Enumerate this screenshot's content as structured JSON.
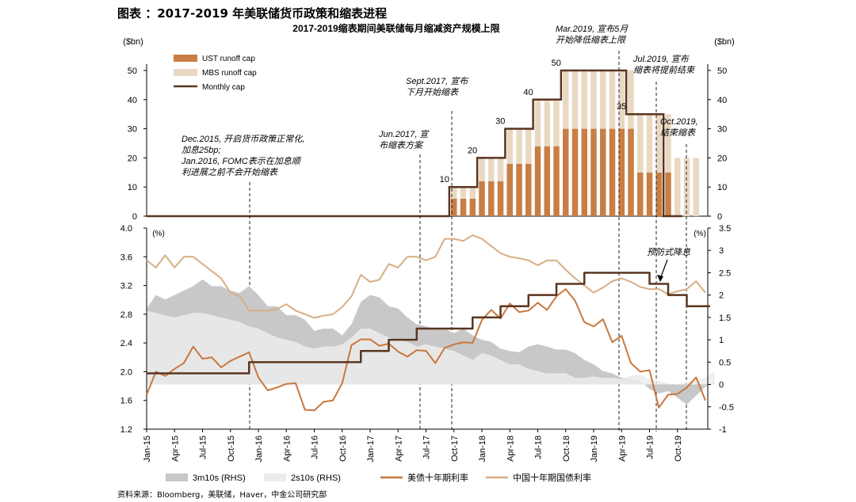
{
  "figure_title": "图表 ：2017-2019 年美联储货币政策和缩表进程",
  "source_note": "资料来源：Bloomberg，美联储，Haver，中金公司研究部",
  "colors": {
    "ust": "#c87e44",
    "mbs": "#e9d9c2",
    "monthly_cap": "#5a3520",
    "us10y": "#c8773e",
    "cn10y": "#d7ae85",
    "s3m10s": "#c8c8c8",
    "s2s10s": "#ececec",
    "axis": "#000000"
  },
  "chart_data": [
    {
      "type": "bar",
      "title": "2017-2019缩表期间美联储每月缩减资产规模上限",
      "ylabel_left": "($bn)",
      "ylabel_right": "($bn)",
      "ylim": [
        0,
        50
      ],
      "yticks": [
        0,
        10,
        20,
        30,
        40,
        50
      ],
      "legend": [
        "UST runoff cap",
        "MBS runoff cap",
        "Monthly cap"
      ],
      "legend_position": "top-left",
      "series": [
        {
          "name": "UST runoff cap",
          "type": "stacked-bar",
          "start_month": "2017-10",
          "values": [
            6,
            6,
            6,
            12,
            12,
            12,
            18,
            18,
            18,
            24,
            24,
            24,
            30,
            30,
            30,
            30,
            30,
            30,
            30,
            30,
            15,
            15,
            15,
            15,
            0,
            0,
            0
          ]
        },
        {
          "name": "MBS runoff cap",
          "type": "stacked-bar",
          "start_month": "2017-10",
          "values": [
            4,
            4,
            4,
            8,
            8,
            8,
            12,
            12,
            12,
            16,
            16,
            16,
            20,
            20,
            20,
            20,
            20,
            20,
            20,
            20,
            20,
            20,
            20,
            20,
            20,
            20,
            20
          ]
        },
        {
          "name": "Monthly cap",
          "type": "step-line",
          "points": [
            [
              "2015-01",
              0
            ],
            [
              "2017-09",
              0
            ],
            [
              "2017-10",
              10
            ],
            [
              "2018-01",
              20
            ],
            [
              "2018-04",
              30
            ],
            [
              "2018-07",
              40
            ],
            [
              "2018-10",
              50
            ],
            [
              "2019-05",
              35
            ],
            [
              "2019-09",
              0
            ],
            [
              "2019-10",
              0
            ]
          ]
        }
      ],
      "value_labels": [
        {
          "text": "10",
          "x": "2017-10"
        },
        {
          "text": "20",
          "x": "2018-01"
        },
        {
          "text": "30",
          "x": "2018-04"
        },
        {
          "text": "40",
          "x": "2018-07"
        },
        {
          "text": "50",
          "x": "2018-10"
        },
        {
          "text": "35",
          "x": "2019-05"
        }
      ],
      "annotations": [
        {
          "text": [
            "Dec.2015, 开启货币政策正常化,",
            "加息25bp;",
            "Jan.2016, FOMC表示在加息顺",
            "利进展之前不会开始缩表"
          ],
          "x": "2015-12"
        },
        {
          "text": [
            "Jun.2017, 宣",
            "布缩表方案"
          ],
          "x": "2017-06"
        },
        {
          "text": [
            "Sept.2017, 宣布",
            "下月开始缩表"
          ],
          "x": "2017-09"
        },
        {
          "text": [
            "Mar.2019, 宣布5月",
            "开始降低缩表上限"
          ],
          "x": "2019-03"
        },
        {
          "text": [
            "Jul.2019, 宣布",
            "缩表将提前结束"
          ],
          "x": "2019-07"
        },
        {
          "text": [
            "Oct.2019,",
            "结束缩表"
          ],
          "x": "2019-10"
        }
      ]
    },
    {
      "type": "line",
      "ylabel_left": "(%)",
      "ylabel_right": "(%)",
      "ylim_left": [
        1.2,
        4.0
      ],
      "yticks_left": [
        "1.2",
        "1.6",
        "2.0",
        "2.4",
        "2.8",
        "3.2",
        "3.6",
        "4.0"
      ],
      "ylim_right": [
        -1,
        3.5
      ],
      "yticks_right": [
        "-1",
        "-0.5",
        "0",
        "0.5",
        "1",
        "1.5",
        "2",
        "2.5",
        "3",
        "3.5"
      ],
      "x_tick_labels": [
        "Jan-15",
        "Apr-15",
        "Jul-15",
        "Oct-15",
        "Jan-16",
        "Apr-16",
        "Jul-16",
        "Oct-16",
        "Jan-17",
        "Apr-17",
        "Jul-17",
        "Oct-17",
        "Jan-18",
        "Apr-18",
        "Jul-18",
        "Oct-18",
        "Jan-19",
        "Apr-19",
        "Jul-19",
        "Oct-19"
      ],
      "legend": [
        "3m10s (RHS)",
        "2s10s (RHS)",
        "美债十年期利率",
        "中国十年期国债利率"
      ],
      "legend_position": "bottom",
      "annotations": [
        {
          "text": "预防式降息",
          "x": "2019-07"
        }
      ],
      "series": [
        {
          "name": "3m10s (RHS)",
          "axis": "right",
          "type": "area",
          "start_month": "2015-01",
          "values": [
            1.7,
            2.0,
            1.9,
            2.0,
            2.1,
            2.2,
            2.35,
            2.2,
            2.2,
            2.1,
            2.05,
            2.2,
            2.0,
            1.75,
            1.75,
            1.55,
            1.55,
            1.45,
            1.2,
            1.25,
            1.25,
            1.1,
            1.35,
            1.85,
            2.0,
            1.95,
            1.75,
            1.7,
            1.5,
            1.35,
            1.3,
            1.25,
            1.25,
            1.15,
            1.25,
            1.1,
            1.0,
            0.95,
            0.8,
            0.75,
            0.72,
            0.85,
            0.9,
            0.85,
            0.78,
            0.78,
            0.7,
            0.55,
            0.45,
            0.3,
            0.25,
            0.15,
            0.12,
            0.08,
            -0.1,
            -0.2,
            -0.15,
            -0.3,
            -0.45,
            -0.25,
            -0.05,
            0.05
          ]
        },
        {
          "name": "2s10s (RHS)",
          "axis": "right",
          "type": "area",
          "start_month": "2015-01",
          "values": [
            1.65,
            1.6,
            1.55,
            1.5,
            1.55,
            1.6,
            1.6,
            1.55,
            1.5,
            1.45,
            1.4,
            1.3,
            1.25,
            1.15,
            1.05,
            1.0,
            0.95,
            0.85,
            0.8,
            0.85,
            0.85,
            0.9,
            1.05,
            1.25,
            1.25,
            1.15,
            1.05,
            1.0,
            0.95,
            0.85,
            0.9,
            0.85,
            0.8,
            0.75,
            0.65,
            0.55,
            0.7,
            0.65,
            0.55,
            0.45,
            0.45,
            0.35,
            0.3,
            0.25,
            0.25,
            0.25,
            0.15,
            0.15,
            0.18,
            0.15,
            0.15,
            0.12,
            0.2,
            0.22,
            0.12,
            0.08,
            0.02,
            0.0,
            0.05,
            0.1,
            0.15,
            0.3
          ]
        },
        {
          "name": "美债十年期利率",
          "axis": "left",
          "start_month": "2015-01",
          "values": [
            1.68,
            2.0,
            1.94,
            2.04,
            2.12,
            2.35,
            2.18,
            2.2,
            2.06,
            2.15,
            2.21,
            2.27,
            1.92,
            1.74,
            1.78,
            1.83,
            1.84,
            1.47,
            1.46,
            1.58,
            1.6,
            1.84,
            2.37,
            2.45,
            2.45,
            2.36,
            2.39,
            2.28,
            2.21,
            2.3,
            2.29,
            2.12,
            2.33,
            2.38,
            2.41,
            2.4,
            2.72,
            2.86,
            2.74,
            2.95,
            2.83,
            2.85,
            2.96,
            2.86,
            3.05,
            3.15,
            2.99,
            2.69,
            2.63,
            2.73,
            2.41,
            2.5,
            2.12,
            2.0,
            2.02,
            1.5,
            1.68,
            1.69,
            1.78,
            1.92,
            1.6
          ]
        },
        {
          "name": "中国十年期国债利率",
          "axis": "left",
          "start_month": "2015-01",
          "values": [
            3.55,
            3.45,
            3.62,
            3.45,
            3.6,
            3.6,
            3.5,
            3.4,
            3.3,
            3.1,
            3.05,
            2.85,
            2.85,
            2.85,
            2.87,
            2.94,
            2.85,
            2.8,
            2.75,
            2.78,
            2.8,
            2.9,
            3.05,
            3.35,
            3.25,
            3.28,
            3.5,
            3.45,
            3.6,
            3.6,
            3.55,
            3.6,
            3.85,
            3.85,
            3.82,
            3.9,
            3.85,
            3.75,
            3.65,
            3.6,
            3.58,
            3.55,
            3.48,
            3.55,
            3.55,
            3.42,
            3.3,
            3.2,
            3.1,
            3.17,
            3.26,
            3.3,
            3.25,
            3.18,
            3.15,
            3.15,
            3.08,
            3.12,
            3.15,
            3.26,
            3.1
          ]
        },
        {
          "name": "Fed funds upper bound",
          "axis": "right",
          "type": "step-line",
          "start_month": "2015-01",
          "values": [
            0.25,
            0.25,
            0.25,
            0.25,
            0.25,
            0.25,
            0.25,
            0.25,
            0.25,
            0.25,
            0.25,
            0.5,
            0.5,
            0.5,
            0.5,
            0.5,
            0.5,
            0.5,
            0.5,
            0.5,
            0.5,
            0.5,
            0.5,
            0.75,
            0.75,
            0.75,
            1.0,
            1.0,
            1.0,
            1.25,
            1.25,
            1.25,
            1.25,
            1.25,
            1.25,
            1.5,
            1.5,
            1.5,
            1.75,
            1.75,
            1.75,
            2.0,
            2.0,
            2.0,
            2.25,
            2.25,
            2.25,
            2.5,
            2.5,
            2.5,
            2.5,
            2.5,
            2.5,
            2.5,
            2.25,
            2.25,
            2.0,
            2.0,
            1.75,
            1.75,
            1.75
          ]
        }
      ]
    }
  ]
}
